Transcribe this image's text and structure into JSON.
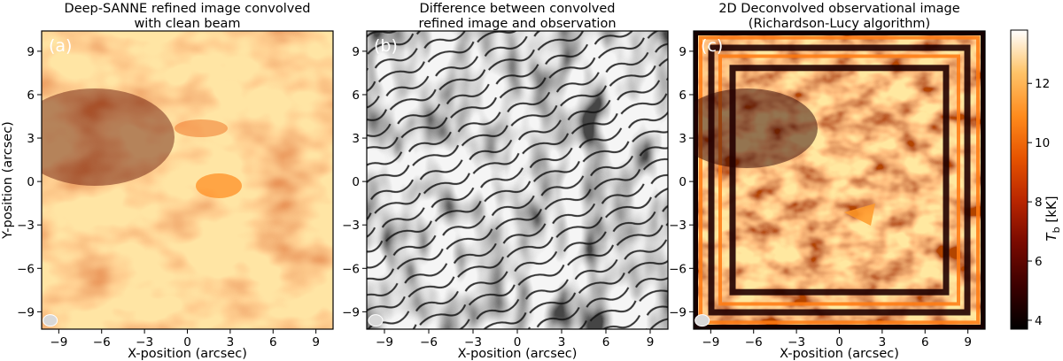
{
  "chart_data": [
    {
      "type": "heatmap",
      "panel_label": "(a)",
      "title_lines": [
        "Deep-SANNE refined image convolved",
        "with clean beam"
      ],
      "xlabel": "X-position (arcsec)",
      "ylabel": "Y-position (arcsec)",
      "xlim": [
        -10.2,
        10.2
      ],
      "ylim": [
        -10.2,
        10.4
      ],
      "xticks": [
        -9,
        -6,
        -3,
        0,
        3,
        6,
        9
      ],
      "yticks": [
        -9,
        -6,
        -3,
        0,
        3,
        6,
        9
      ],
      "colormap": "afmhot",
      "beam_marker": "ellipse, lower-left"
    },
    {
      "type": "heatmap",
      "panel_label": "(b)",
      "title_lines": [
        "Difference between convolved",
        "refined image and observation"
      ],
      "xlabel": "X-position (arcsec)",
      "ylabel": "",
      "xlim": [
        -10.2,
        10.2
      ],
      "ylim": [
        -10.2,
        10.4
      ],
      "xticks": [
        -9,
        -6,
        -3,
        0,
        3,
        6,
        9
      ],
      "yticks": [
        -9,
        -6,
        -3,
        0,
        3,
        6,
        9
      ],
      "colormap": "gray",
      "contours": "black contour lines",
      "beam_marker": "ellipse, lower-left"
    },
    {
      "type": "heatmap",
      "panel_label": "(c)",
      "title_lines": [
        "2D Deconvolved observational image",
        "(Richardson-Lucy algorithm)"
      ],
      "xlabel": "X-position (arcsec)",
      "ylabel": "",
      "xlim": [
        -10.2,
        10.2
      ],
      "ylim": [
        -10.2,
        10.4
      ],
      "xticks": [
        -9,
        -6,
        -3,
        0,
        3,
        6,
        9
      ],
      "yticks": [
        -9,
        -6,
        -3,
        0,
        3,
        6,
        9
      ],
      "colormap": "afmhot",
      "beam_marker": "ellipse, lower-left"
    }
  ],
  "colorbar": {
    "label_symbol": "T",
    "label_sub": "b",
    "label_unit": " [kK]",
    "range": [
      3.7,
      13.8
    ],
    "ticks": [
      4,
      6,
      8,
      10,
      12
    ]
  },
  "colors": {
    "afmhot_stops": [
      "#000000",
      "#3a0000",
      "#7a0a00",
      "#b92600",
      "#e55300",
      "#ff8a1c",
      "#ffc46a",
      "#ffffff"
    ],
    "gray_stops": [
      "#000000",
      "#ffffff"
    ],
    "beam": "#d8d8d8"
  }
}
